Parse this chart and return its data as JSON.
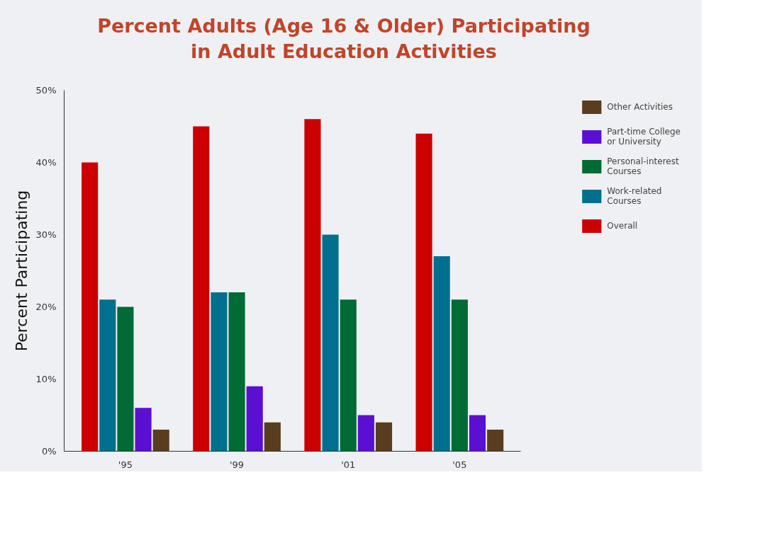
{
  "chart_data": {
    "type": "bar",
    "title": "Percent Adults (Age 16 & Older) Participating in Adult Education Activities",
    "ylabel": "Percent Participating",
    "categories": [
      "'95",
      "'99",
      "'01",
      "'05"
    ],
    "series": [
      {
        "name": "Overall",
        "color": "#cc0000",
        "values": [
          40,
          45,
          46,
          44
        ]
      },
      {
        "name": "Work-related Courses",
        "color": "#00708e",
        "values": [
          21,
          22,
          30,
          27
        ]
      },
      {
        "name": "Personal-interest Courses",
        "color": "#006b35",
        "values": [
          20,
          22,
          21,
          21
        ]
      },
      {
        "name": "Part-time College or University",
        "color": "#5b0fd2",
        "values": [
          6,
          9,
          5,
          5
        ]
      },
      {
        "name": "Other Activities",
        "color": "#5a3c1e",
        "values": [
          3,
          4,
          4,
          3
        ]
      }
    ],
    "ylim": [
      0,
      50
    ],
    "yticks": [
      {
        "value": 0,
        "label": "0%"
      },
      {
        "value": 10,
        "label": "10%"
      },
      {
        "value": 20,
        "label": "20%"
      },
      {
        "value": 30,
        "label": "30%"
      },
      {
        "value": 40,
        "label": "40%"
      },
      {
        "value": 50,
        "label": "50%"
      }
    ],
    "grid": false,
    "legend": "right"
  }
}
